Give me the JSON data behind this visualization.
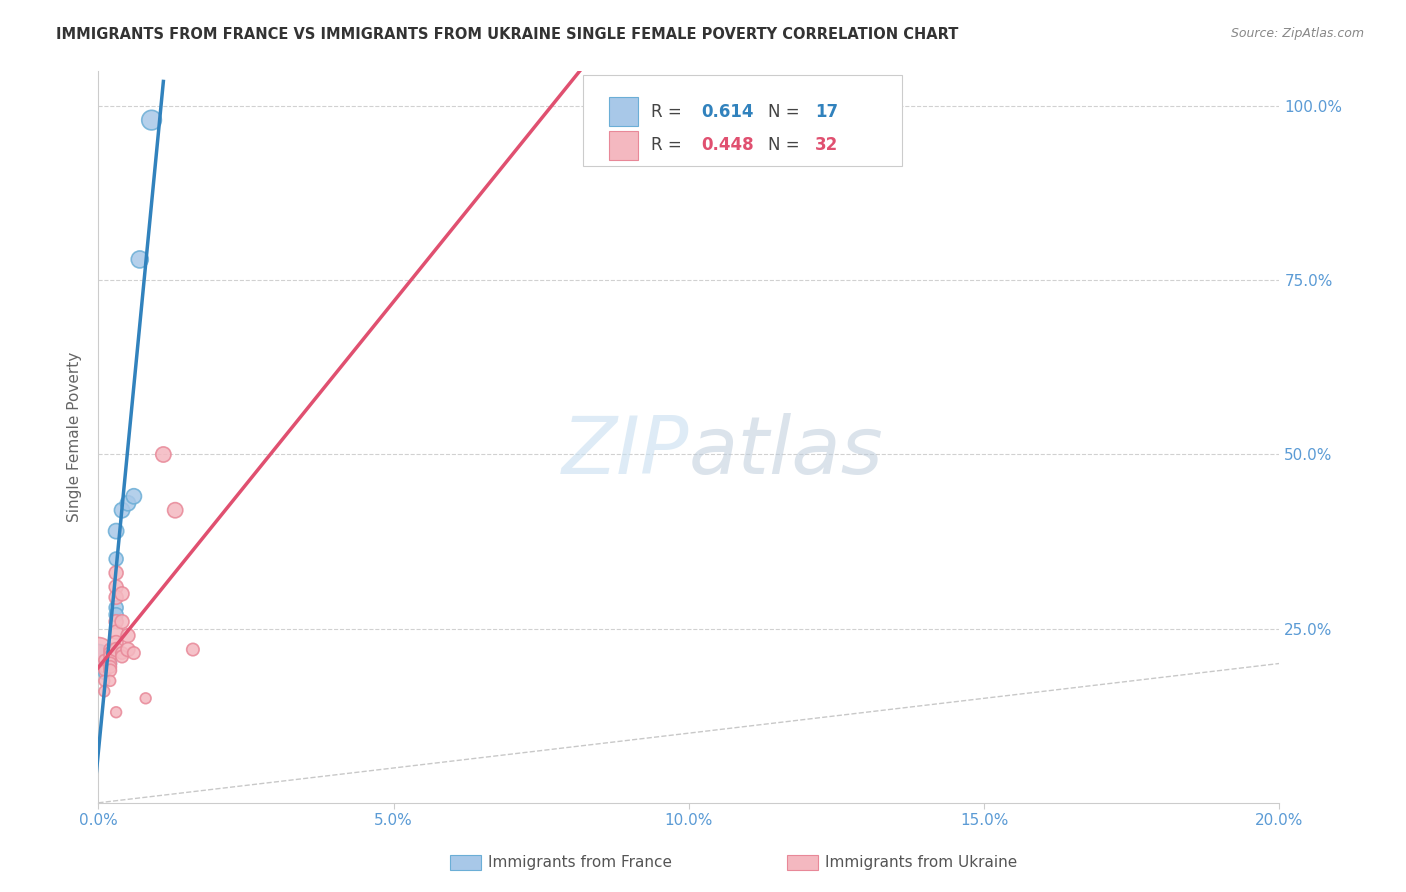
{
  "title": "IMMIGRANTS FROM FRANCE VS IMMIGRANTS FROM UKRAINE SINGLE FEMALE POVERTY CORRELATION CHART",
  "source": "Source: ZipAtlas.com",
  "ylabel": "Single Female Poverty",
  "legend_france": {
    "R": "0.614",
    "N": "17"
  },
  "legend_ukraine": {
    "R": "0.448",
    "N": "32"
  },
  "france_color": "#a8c8e8",
  "france_edge_color": "#6baed6",
  "ukraine_color": "#f4b8c0",
  "ukraine_edge_color": "#e88898",
  "france_line_color": "#3182bd",
  "ukraine_line_color": "#e05070",
  "diagonal_color": "#bbbbbb",
  "france_points": [
    [
      0.0,
      0.21
    ],
    [
      0.001,
      0.2
    ],
    [
      0.001,
      0.195
    ],
    [
      0.001,
      0.185
    ],
    [
      0.002,
      0.2
    ],
    [
      0.002,
      0.21
    ],
    [
      0.002,
      0.215
    ],
    [
      0.002,
      0.22
    ],
    [
      0.003,
      0.39
    ],
    [
      0.003,
      0.35
    ],
    [
      0.003,
      0.28
    ],
    [
      0.003,
      0.27
    ],
    [
      0.004,
      0.42
    ],
    [
      0.005,
      0.43
    ],
    [
      0.006,
      0.44
    ],
    [
      0.007,
      0.78
    ],
    [
      0.009,
      0.98
    ]
  ],
  "ukraine_points": [
    [
      0.0,
      0.215
    ],
    [
      0.001,
      0.205
    ],
    [
      0.001,
      0.195
    ],
    [
      0.001,
      0.19
    ],
    [
      0.001,
      0.175
    ],
    [
      0.001,
      0.16
    ],
    [
      0.002,
      0.22
    ],
    [
      0.002,
      0.215
    ],
    [
      0.002,
      0.21
    ],
    [
      0.002,
      0.2
    ],
    [
      0.002,
      0.195
    ],
    [
      0.002,
      0.19
    ],
    [
      0.002,
      0.175
    ],
    [
      0.003,
      0.33
    ],
    [
      0.003,
      0.31
    ],
    [
      0.003,
      0.295
    ],
    [
      0.003,
      0.26
    ],
    [
      0.003,
      0.245
    ],
    [
      0.003,
      0.23
    ],
    [
      0.003,
      0.22
    ],
    [
      0.003,
      0.13
    ],
    [
      0.004,
      0.3
    ],
    [
      0.004,
      0.26
    ],
    [
      0.004,
      0.215
    ],
    [
      0.004,
      0.21
    ],
    [
      0.005,
      0.24
    ],
    [
      0.005,
      0.22
    ],
    [
      0.006,
      0.215
    ],
    [
      0.008,
      0.15
    ],
    [
      0.011,
      0.5
    ],
    [
      0.013,
      0.42
    ],
    [
      0.016,
      0.22
    ]
  ],
  "france_sizes": [
    300,
    60,
    60,
    60,
    80,
    80,
    80,
    80,
    120,
    100,
    100,
    100,
    120,
    120,
    120,
    150,
    200
  ],
  "ukraine_sizes": [
    500,
    60,
    60,
    60,
    60,
    60,
    80,
    80,
    80,
    80,
    80,
    80,
    60,
    100,
    100,
    100,
    100,
    100,
    100,
    100,
    60,
    100,
    100,
    80,
    80,
    100,
    100,
    80,
    60,
    120,
    120,
    80
  ],
  "xlim": [
    0.0,
    0.2
  ],
  "ylim": [
    0.0,
    1.05
  ],
  "background_color": "#ffffff",
  "grid_color": "#cccccc",
  "tick_color": "#5b9bd5",
  "title_color": "#333333",
  "source_color": "#888888",
  "ylabel_color": "#666666",
  "legend_r_label": "R = ",
  "legend_n_label": "N = ",
  "france_r_color": "#3182bd",
  "ukraine_r_color": "#e05070",
  "watermark_text": "ZIPatlas",
  "watermark_color": "#c8dff0",
  "bottom_legend_france": "Immigrants from France",
  "bottom_legend_ukraine": "Immigrants from Ukraine"
}
